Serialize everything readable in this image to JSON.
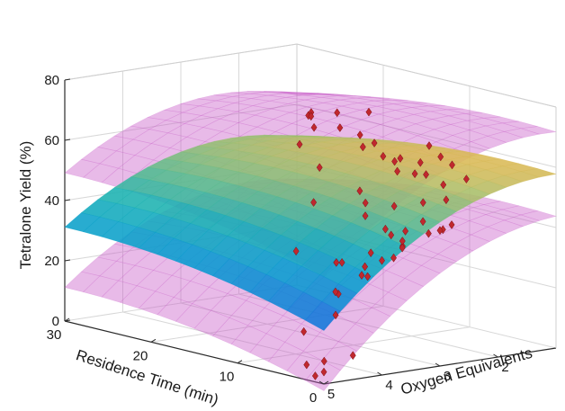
{
  "chart_data": {
    "type": "surface3d",
    "title": "",
    "zlabel": "Tetralone Yield (%)",
    "xlabel": "Residence Time (min)",
    "ylabel": "Oxygen Equivalents",
    "z_ticks": [
      "0",
      "20",
      "40",
      "60",
      "80"
    ],
    "x_ticks": [
      "0",
      "10",
      "20",
      "30"
    ],
    "y_ticks": [
      "2",
      "3",
      "4",
      "5"
    ],
    "zlim": [
      0,
      80
    ],
    "xlim": [
      0,
      30
    ],
    "ylim": [
      1,
      5
    ],
    "grid": true,
    "colormap": "parula",
    "bound_color": "#c85ac8",
    "marker_color": "#c0282e",
    "points": [
      [
        28,
        1.1,
        58
      ],
      [
        27,
        1.2,
        60
      ],
      [
        26,
        1.3,
        56
      ],
      [
        27,
        1.4,
        50
      ],
      [
        25,
        1.5,
        61
      ],
      [
        24,
        1.2,
        62
      ],
      [
        23,
        1.3,
        58
      ],
      [
        21,
        1.1,
        64
      ],
      [
        20,
        1.4,
        58
      ],
      [
        19,
        1.5,
        55
      ],
      [
        18,
        1.3,
        52
      ],
      [
        17,
        1.6,
        58
      ],
      [
        16,
        1.4,
        52
      ],
      [
        15,
        1.2,
        48
      ],
      [
        22,
        1.8,
        47
      ],
      [
        14,
        1.6,
        55
      ],
      [
        13,
        1.8,
        52
      ],
      [
        12,
        1.4,
        60
      ],
      [
        11,
        1.7,
        56
      ],
      [
        10,
        1.5,
        58
      ],
      [
        9,
        1.9,
        54
      ],
      [
        8,
        1.6,
        57
      ],
      [
        7,
        1.9,
        52
      ],
      [
        6,
        2.0,
        48
      ],
      [
        5,
        1.8,
        55
      ],
      [
        20,
        2.2,
        38
      ],
      [
        16,
        2.0,
        44
      ],
      [
        14,
        2.2,
        42
      ],
      [
        12,
        2.5,
        40
      ],
      [
        10,
        2.3,
        44
      ],
      [
        9,
        2.6,
        38
      ],
      [
        8,
        2.1,
        46
      ],
      [
        7,
        2.8,
        38
      ],
      [
        6,
        2.4,
        42
      ],
      [
        5,
        2.9,
        36
      ],
      [
        18,
        2.8,
        25
      ],
      [
        12,
        3.0,
        26
      ],
      [
        10,
        3.2,
        28
      ],
      [
        8,
        3.0,
        32
      ],
      [
        6,
        3.4,
        30
      ],
      [
        4,
        2.6,
        40
      ],
      [
        4,
        3.0,
        42
      ],
      [
        3,
        3.2,
        40
      ],
      [
        2,
        3.5,
        36
      ],
      [
        3,
        3.8,
        30
      ],
      [
        2,
        2.5,
        44
      ],
      [
        1,
        2.8,
        44
      ],
      [
        0,
        3.0,
        45
      ],
      [
        1,
        3.5,
        40
      ],
      [
        2,
        4.5,
        20
      ],
      [
        1,
        4.2,
        33
      ],
      [
        0,
        4.0,
        38
      ],
      [
        1,
        4.6,
        28
      ],
      [
        0,
        4.8,
        30
      ],
      [
        3,
        4.9,
        15
      ],
      [
        0,
        4.5,
        8
      ],
      [
        1,
        5.0,
        2
      ],
      [
        2,
        5.0,
        5
      ],
      [
        0,
        5.0,
        4
      ],
      [
        4,
        4.4,
        3
      ]
    ]
  }
}
